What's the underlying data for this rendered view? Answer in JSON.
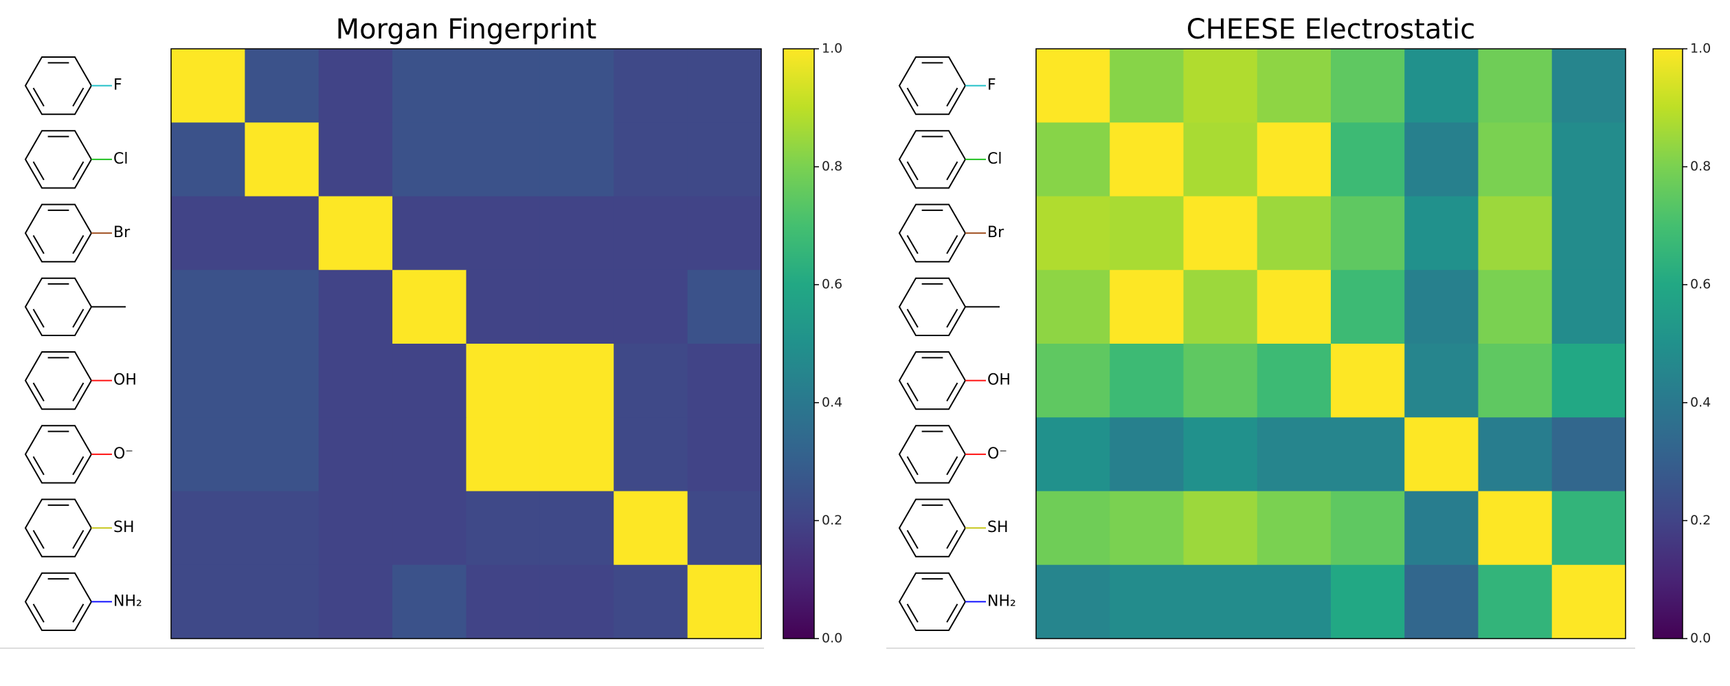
{
  "chart_data": [
    {
      "type": "heatmap",
      "title": "Morgan Fingerprint",
      "colormap": "viridis",
      "categories": [
        "F",
        "Cl",
        "Br",
        null,
        "OH",
        "O⁻",
        "SH",
        "NH₂"
      ],
      "category_colors": [
        "#20c0c8",
        "#20c020",
        "#a05020",
        "#000000",
        "#ff1010",
        "#ff1010",
        "#c8c820",
        "#1010ff"
      ],
      "values": [
        [
          1,
          0.25,
          0.2,
          0.25,
          0.25,
          0.25,
          0.22,
          0.22
        ],
        [
          0.25,
          1,
          0.2,
          0.25,
          0.25,
          0.25,
          0.22,
          0.22
        ],
        [
          0.2,
          0.2,
          1,
          0.2,
          0.2,
          0.2,
          0.2,
          0.2
        ],
        [
          0.25,
          0.25,
          0.2,
          1,
          0.2,
          0.2,
          0.2,
          0.25
        ],
        [
          0.25,
          0.25,
          0.2,
          0.2,
          1,
          1,
          0.22,
          0.2
        ],
        [
          0.25,
          0.25,
          0.2,
          0.2,
          1,
          1,
          0.22,
          0.2
        ],
        [
          0.22,
          0.22,
          0.2,
          0.2,
          0.22,
          0.22,
          1,
          0.22
        ],
        [
          0.22,
          0.22,
          0.2,
          0.25,
          0.2,
          0.2,
          0.22,
          1
        ]
      ],
      "clim": [
        0,
        1
      ],
      "cticks": [
        {
          "value": 0,
          "label": "0.0"
        },
        0.2,
        0.4,
        0.6,
        0.8,
        {
          "value": 1,
          "label": "1.0"
        }
      ]
    },
    {
      "type": "heatmap",
      "title": "CHEESE Electrostatic",
      "colormap": "viridis",
      "categories": [
        "F",
        "Cl",
        "Br",
        null,
        "OH",
        "O⁻",
        "SH",
        "NH₂"
      ],
      "category_colors": [
        "#20c0c8",
        "#20c020",
        "#a05020",
        "#000000",
        "#ff1010",
        "#ff1010",
        "#c8c820",
        "#1010ff"
      ],
      "values": [
        [
          1,
          0.82,
          0.88,
          0.83,
          0.75,
          0.5,
          0.78,
          0.45
        ],
        [
          0.82,
          1,
          0.87,
          1,
          0.68,
          0.43,
          0.8,
          0.48
        ],
        [
          0.88,
          0.87,
          1,
          0.85,
          0.75,
          0.5,
          0.85,
          0.48
        ],
        [
          0.83,
          1,
          0.85,
          1,
          0.68,
          0.43,
          0.8,
          0.48
        ],
        [
          0.75,
          0.68,
          0.75,
          0.68,
          1,
          0.45,
          0.75,
          0.6
        ],
        [
          0.5,
          0.43,
          0.5,
          0.45,
          0.45,
          1,
          0.42,
          0.33
        ],
        [
          0.78,
          0.8,
          0.85,
          0.8,
          0.75,
          0.42,
          1,
          0.65
        ],
        [
          0.45,
          0.48,
          0.48,
          0.48,
          0.6,
          0.33,
          0.65,
          1
        ]
      ],
      "clim": [
        0,
        1
      ],
      "cticks": [
        {
          "value": 0,
          "label": "0.0"
        },
        0.2,
        0.4,
        0.6,
        0.8,
        {
          "value": 1,
          "label": "1.0"
        }
      ]
    }
  ]
}
